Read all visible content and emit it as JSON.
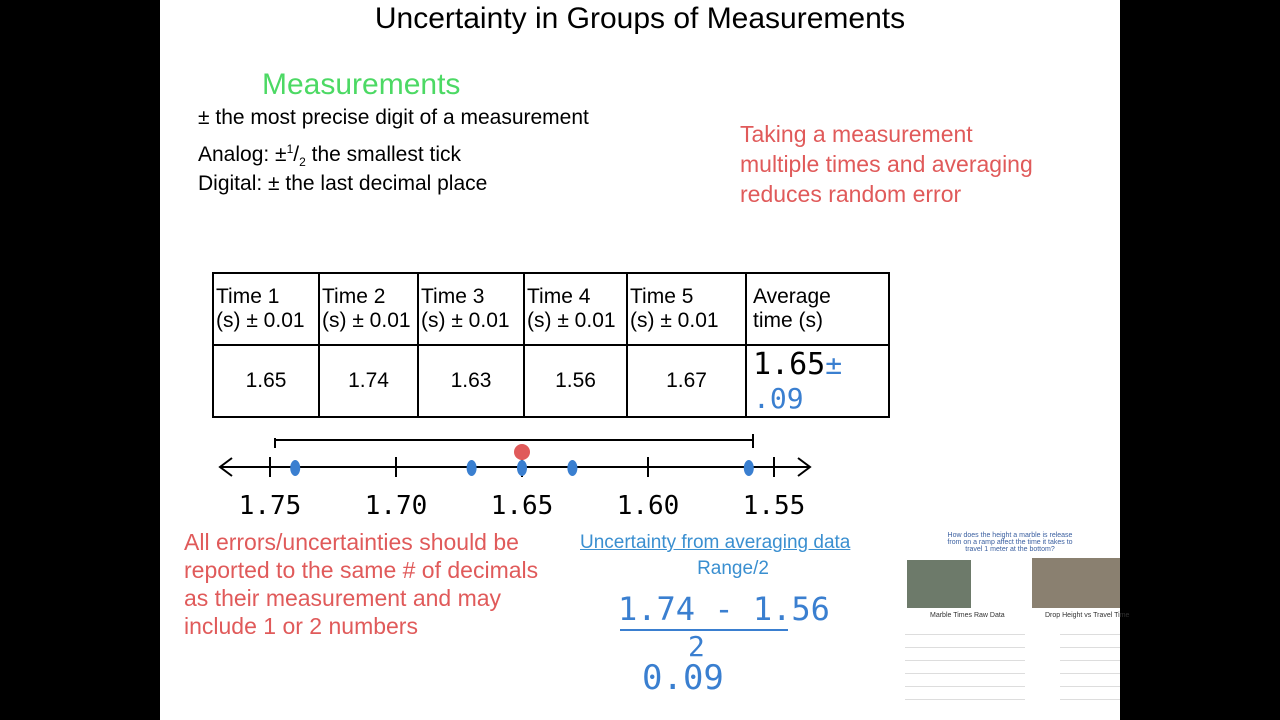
{
  "title": "Uncertainty in Groups of Measurements",
  "measurements": {
    "heading": "Measurements",
    "line1": "± the most precise digit of a measurement",
    "analog": {
      "prefix": "Analog: ±",
      "numerator": "1",
      "slash": "/",
      "denominator": "2",
      "suffix": "the smallest tick"
    },
    "digital": "Digital: ± the last decimal place"
  },
  "note": [
    "Taking a measurement",
    "multiple times and averaging",
    "reduces random error"
  ],
  "table": {
    "headers": [
      [
        "Time 1",
        "(s) ± 0.01"
      ],
      [
        "Time 2",
        "(s) ± 0.01"
      ],
      [
        "Time 3",
        "(s) ± 0.01"
      ],
      [
        "Time 4",
        "(s) ± 0.01"
      ],
      [
        "Time 5",
        "(s) ± 0.01"
      ],
      [
        "Average",
        "time (s)"
      ]
    ],
    "values": [
      "1.65",
      "1.74",
      "1.63",
      "1.56",
      "1.67"
    ],
    "average": "1.65",
    "average_uncertainty": "± .09"
  },
  "number_line": {
    "labels": [
      "1.75",
      "1.70",
      "1.65",
      "1.60",
      "1.55"
    ]
  },
  "rule": [
    "All errors/uncertainties should be",
    "reported to the same # of decimals",
    "as their measurement and may",
    "include 1 or 2 numbers"
  ],
  "averaging": {
    "link": "Uncertainty from averaging data",
    "formula": "Range/2",
    "numerator": "1.74 - 1.56",
    "denominator": "2",
    "result": "0.09"
  },
  "thumbnail": {
    "question": "How does the height a marble is release from on a ramp affect the time it takes to travel 1 meter at the bottom?",
    "left_caption": "Marble Times Raw Data",
    "right_caption": "Drop Height vs Travel Time"
  }
}
